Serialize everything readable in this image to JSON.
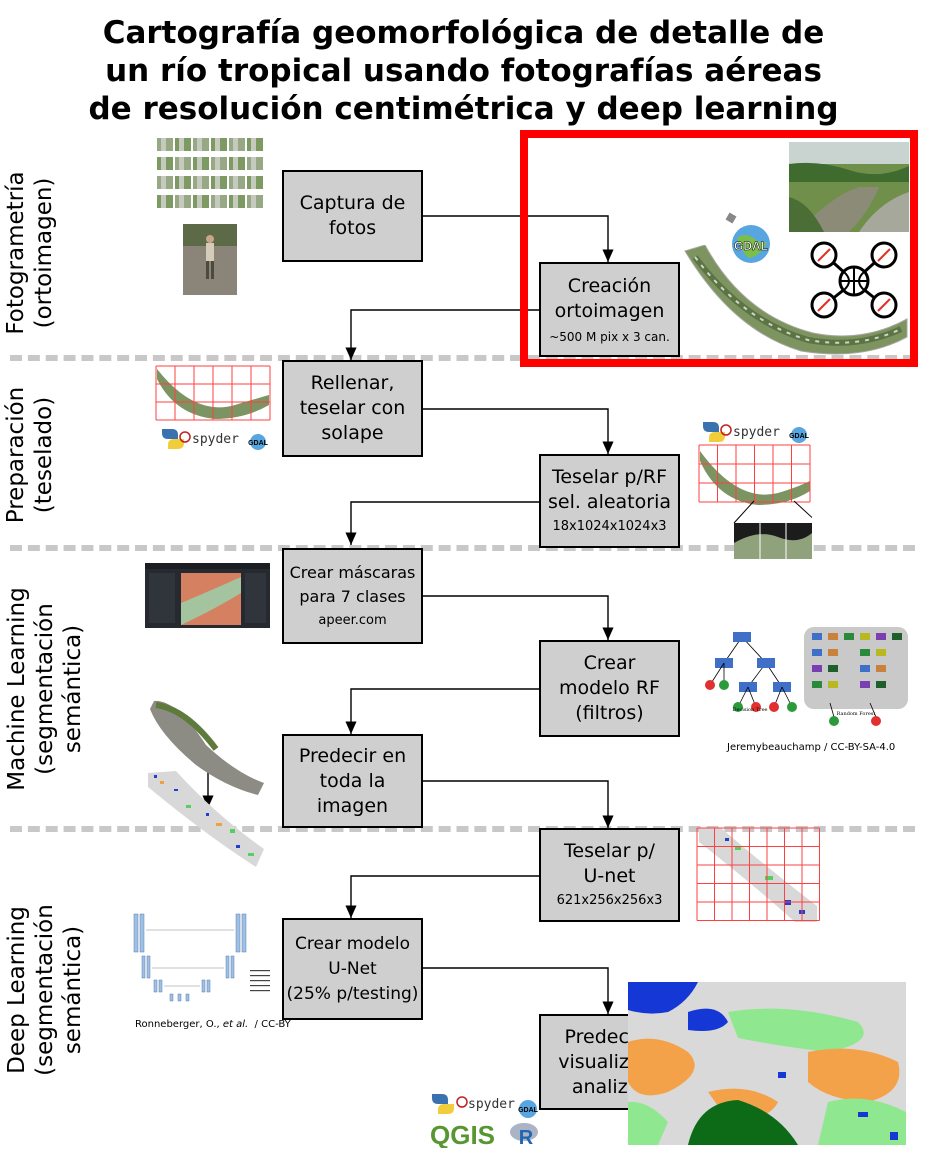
{
  "title": {
    "line1": "Cartografía geomorfológica de detalle de",
    "line2": "un río tropical usando fotografías aéreas",
    "line3": "de resolución centimétrica y deep learning"
  },
  "sections": [
    {
      "line1": "Fotogrametría",
      "line2": "(ortoimagen)"
    },
    {
      "line1": "Preparación",
      "line2": "(teselado)"
    },
    {
      "line1": "Machine Learning",
      "line2": "(segmentación",
      "line3": "semántica)"
    },
    {
      "line1": "Deep Learning",
      "line2": "(segmentación",
      "line3": "semántica)"
    }
  ],
  "steps": {
    "captura": {
      "line1": "Captura de",
      "line2": "fotos"
    },
    "ortoimagen": {
      "line1": "Creación",
      "line2": "ortoimagen",
      "sub": "~500 M pix x 3 can."
    },
    "rellenar": {
      "line1": "Rellenar,",
      "line2": "teselar con",
      "line3": "solape"
    },
    "teselar_rf": {
      "line1": "Teselar p/RF",
      "line2": "sel. aleatoria",
      "sub": "18x1024x1024x3"
    },
    "mascaras": {
      "line1": "Crear máscaras",
      "line2": "para 7 clases",
      "sub": "apeer.com"
    },
    "modelo_rf": {
      "line1": "Crear",
      "line2": "modelo RF",
      "line3": "(filtros)"
    },
    "predecir": {
      "line1": "Predecir en",
      "line2": "toda la",
      "line3": "imagen"
    },
    "teselar_unet": {
      "line1": "Teselar p/",
      "line2": "U-net",
      "sub": "621x256x256x3"
    },
    "modelo_unet": {
      "line1": "Crear modelo",
      "line2": "U-Net",
      "line3": "(25% p/testing)"
    },
    "visualizar": {
      "line1": "Predecir /",
      "line2": "visualizar /",
      "line3": "analizar"
    }
  },
  "credits": {
    "rf": "Jeremybeauchamp / CC-BY-SA-4.0",
    "unet_author": "Ronneberger, O., ",
    "unet_etal": "et al.",
    "unet_license": "  / CC-BY",
    "decision_tree": "Decision Tree",
    "random_forest": "Random Forest"
  },
  "logos": {
    "gdal": "GDAL",
    "spyder": "spyder",
    "qgis": "QGIS",
    "r": "R"
  },
  "colors": {
    "highlight": "#ff0000",
    "box_fill": "#cfcfcf",
    "divider": "#c8c8c8",
    "tile_grid": "#ff4040"
  }
}
